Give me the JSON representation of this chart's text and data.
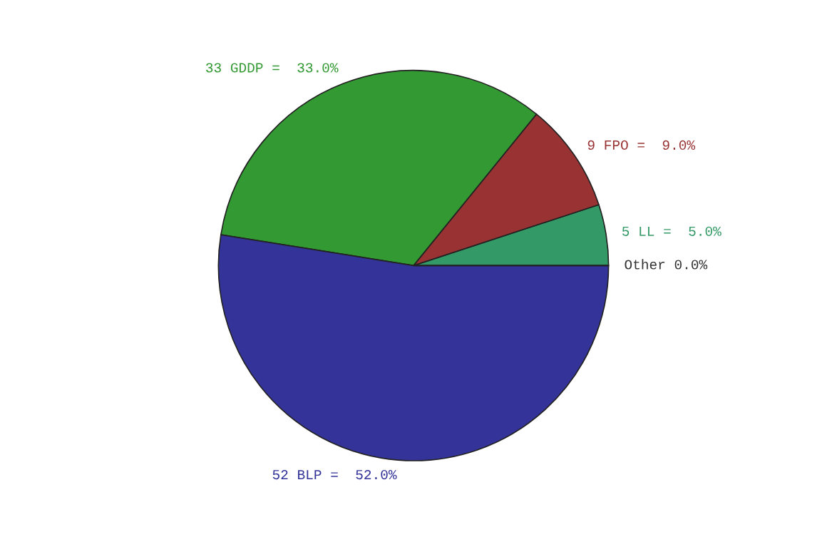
{
  "chart_data": {
    "type": "pie",
    "categories": [
      "5 LL =  5.0%",
      "9 FPO =  9.0%",
      "33 GDDP =  33.0%",
      "52 BLP =  52.0%",
      "Other 0.0%"
    ],
    "values": [
      5,
      9,
      33,
      52,
      0
    ],
    "colors": [
      "#339966",
      "#993333",
      "#339933",
      "#333399",
      "#333333"
    ]
  }
}
